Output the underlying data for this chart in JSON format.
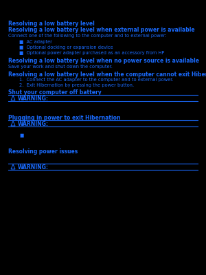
{
  "bg_color": "#000000",
  "text_color": "#1a6bff",
  "line_color": "#1a6bff",
  "page_label": "Resolving a low battery level",
  "subtitle": "Resolving a low battery level when external power is available",
  "body1": "Connect one of the following to the computer and to external power:",
  "bullets": [
    "AC adapter",
    "Optional docking or expansion device",
    "Optional power adapter purchased as an accessory from HP"
  ],
  "head2": "Resolving a low battery level when no power source is available",
  "body2": "Save your work and shut down the computer.",
  "head3": "Resolving a low battery level when the computer cannot exit Hibernation",
  "num1": "1.  Connect the AC adapter to the computer and to external power.",
  "num2": "2.  Exit Hibernation by pressing the power button.",
  "head4": "Shut your computer off battery",
  "warn_label": "WARNING:",
  "head5": "Plugging in power to exit Hibernation",
  "head6": "Resolving power issues",
  "fig_w": 3.0,
  "fig_h": 4.0,
  "dpi": 100
}
